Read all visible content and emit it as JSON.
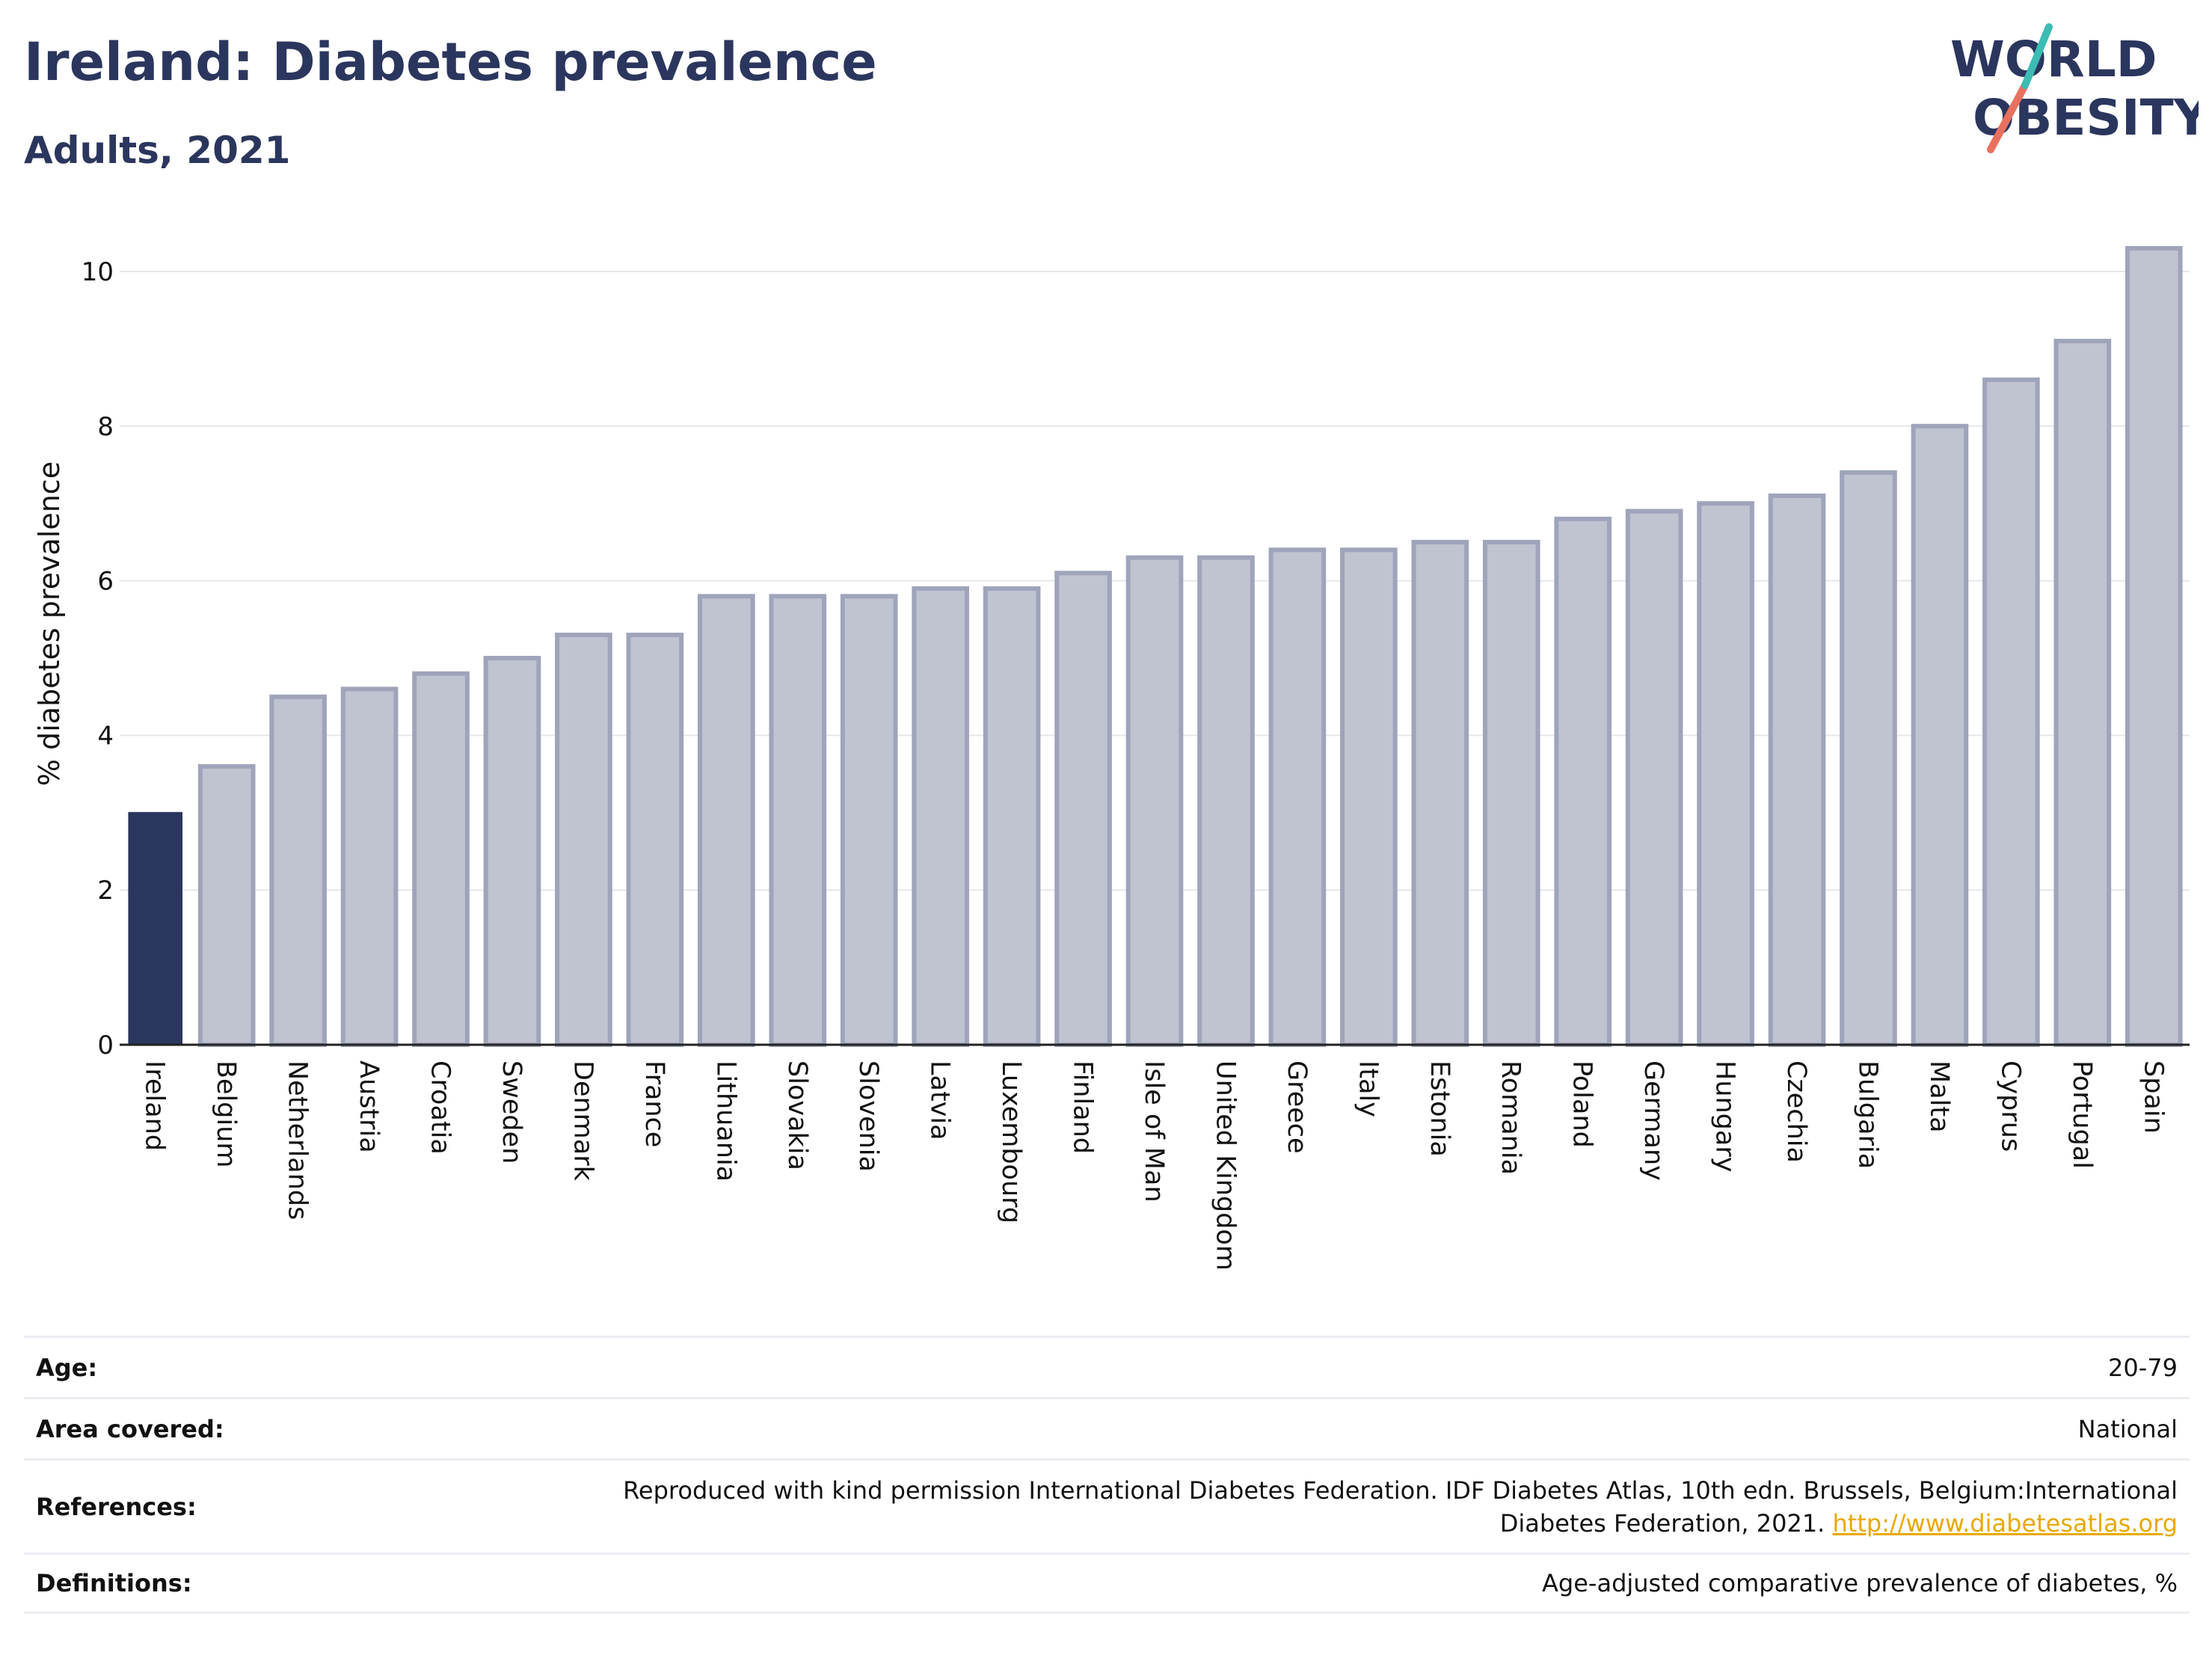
{
  "header": {
    "title": "Ireland: Diabetes prevalence",
    "subtitle": "Adults, 2021"
  },
  "logo": {
    "line1": "WORLD",
    "line2": "OBESITY"
  },
  "chart_data": {
    "type": "bar",
    "ylabel": "% diabetes prevalence",
    "ylim": [
      0,
      10.5
    ],
    "yticks": [
      0,
      2,
      4,
      6,
      8,
      10
    ],
    "grid": true,
    "categories": [
      "Ireland",
      "Belgium",
      "Netherlands",
      "Austria",
      "Croatia",
      "Sweden",
      "Denmark",
      "France",
      "Lithuania",
      "Slovakia",
      "Slovenia",
      "Latvia",
      "Luxembourg",
      "Finland",
      "Isle of Man",
      "United Kingdom",
      "Greece",
      "Italy",
      "Estonia",
      "Romania",
      "Poland",
      "Germany",
      "Hungary",
      "Czechia",
      "Bulgaria",
      "Malta",
      "Cyprus",
      "Portugal",
      "Spain"
    ],
    "values": [
      3.0,
      3.6,
      4.5,
      4.6,
      4.8,
      5.0,
      5.3,
      5.3,
      5.8,
      5.8,
      5.8,
      5.9,
      5.9,
      6.1,
      6.3,
      6.3,
      6.4,
      6.4,
      6.5,
      6.5,
      6.8,
      6.9,
      7.0,
      7.1,
      7.4,
      8.0,
      8.6,
      9.1,
      10.3
    ],
    "highlight": "Ireland",
    "colors": {
      "highlight": "#2b365e",
      "bar_fill": "#c0c3d0",
      "bar_stroke": "#9fa4bb",
      "grid": "#e6e6ec"
    }
  },
  "info": {
    "age": {
      "label": "Age:",
      "value": "20-79"
    },
    "area": {
      "label": "Area covered:",
      "value": "National"
    },
    "references": {
      "label": "References:",
      "line1": "Reproduced with kind permission International Diabetes Federation.  IDF Diabetes Atlas, 10th edn. Brussels, Belgium:International",
      "line2": "Diabetes Federation, 2021. ",
      "link": "http://www.diabetesatlas.org"
    },
    "definitions": {
      "label": "Definitions:",
      "value": "Age-adjusted comparative prevalence of diabetes, %"
    }
  }
}
